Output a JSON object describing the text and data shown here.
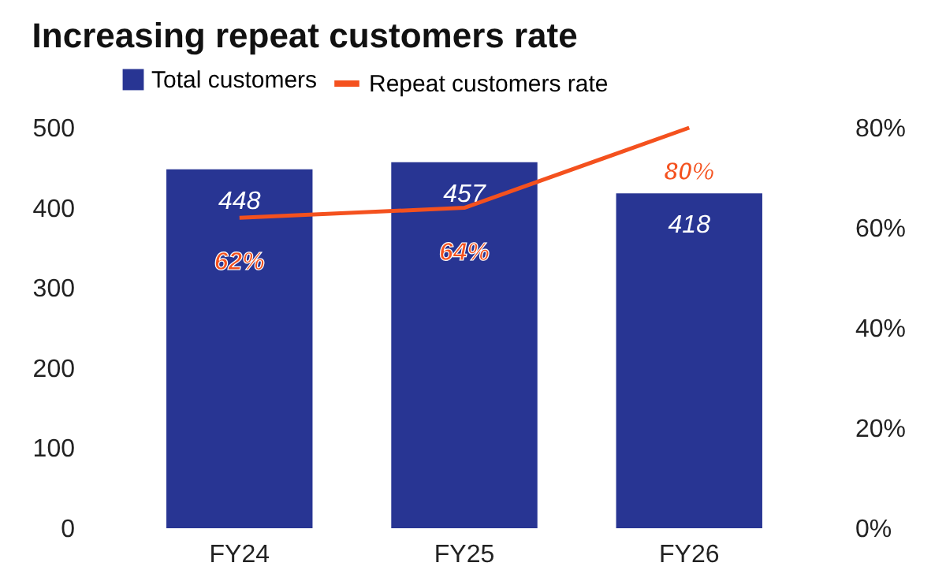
{
  "chart_data": {
    "type": "bar",
    "title": "Increasing repeat customers rate",
    "categories": [
      "FY24",
      "FY25",
      "FY26"
    ],
    "series": [
      {
        "name": "Total customers",
        "color": "#283593",
        "values": [
          448,
          457,
          418
        ],
        "value_labels": [
          "448",
          "457",
          "418"
        ]
      },
      {
        "name": "Repeat customers rate",
        "type": "line",
        "axis": "y2",
        "color": "#f4511e",
        "values": [
          62,
          64,
          80
        ],
        "value_labels": [
          "62%",
          "64%",
          "80%"
        ]
      }
    ],
    "ylim": [
      0,
      500
    ],
    "yticks": [
      0,
      100,
      200,
      300,
      400,
      500
    ],
    "y2lim": [
      0,
      80
    ],
    "y2ticks": [
      {
        "value": 0,
        "label": "0%"
      },
      {
        "value": 20,
        "label": "20%"
      },
      {
        "value": 40,
        "label": "40%"
      },
      {
        "value": 60,
        "label": "60%"
      },
      {
        "value": 80,
        "label": "80%"
      }
    ],
    "grid": false,
    "legend": "top"
  }
}
